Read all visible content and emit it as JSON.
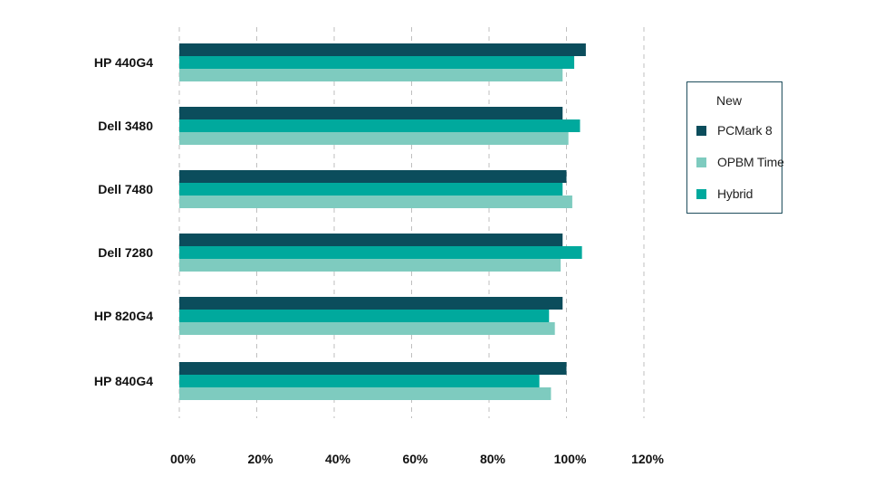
{
  "chart_data": {
    "type": "bar",
    "orientation": "horizontal",
    "categories": [
      "HP 440G4",
      "Dell 3480",
      "Dell 7480",
      "Dell 7280",
      "HP 820G4",
      "HP 840G4"
    ],
    "series": [
      {
        "name": "PCMark 8",
        "color": "#0b4d5c",
        "values": [
          1.05,
          0.99,
          1.0,
          0.99,
          0.99,
          1.0
        ]
      },
      {
        "name": "Hybrid",
        "color": "#00a99d",
        "values": [
          1.02,
          1.035,
          0.99,
          1.04,
          0.955,
          0.93
        ]
      },
      {
        "name": "OPBM Time",
        "color": "#7ecbbf",
        "values": [
          0.99,
          1.005,
          1.015,
          0.985,
          0.97,
          0.96
        ]
      }
    ],
    "xlim": [
      0,
      1.2
    ],
    "x_ticks": [
      0,
      0.2,
      0.4,
      0.6,
      0.8,
      1.0,
      1.2
    ],
    "x_tick_labels": [
      "00%",
      "20%",
      "40%",
      "60%",
      "80%",
      "100%",
      "120%"
    ],
    "grid": true,
    "legend_position": "right",
    "legend": {
      "title": "New",
      "items": [
        {
          "label": "PCMark 8",
          "color": "#0b4d5c"
        },
        {
          "label": "OPBM Time",
          "color": "#7ecbbf"
        },
        {
          "label": "Hybrid",
          "color": "#00a99d"
        }
      ]
    }
  }
}
